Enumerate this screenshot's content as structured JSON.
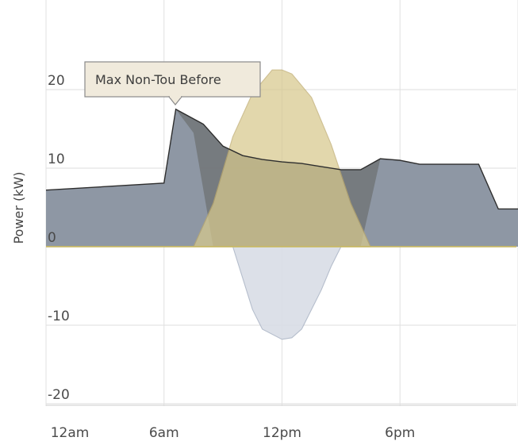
{
  "chart_data": {
    "type": "area",
    "title": "",
    "xlabel": "",
    "ylabel": "Power (kW)",
    "ylim": [
      -20,
      25
    ],
    "yticks": [
      20,
      10,
      0,
      -10,
      -20
    ],
    "xticks": [
      {
        "label": "12am",
        "hour": 0
      },
      {
        "label": "6am",
        "hour": 6
      },
      {
        "label": "12pm",
        "hour": 12
      },
      {
        "label": "6pm",
        "hour": 18
      }
    ],
    "xlim_hours": [
      0,
      24
    ],
    "grid": true,
    "tooltip": {
      "text": "Max Non-Tou Before",
      "hour": 6.6,
      "value": 17.5
    },
    "series": [
      {
        "key": "max_non_tou_before",
        "name": "Max Non-Tou Before",
        "color": "#6f7478",
        "x": [
          0,
          6,
          6.6,
          8,
          9,
          10,
          11,
          12,
          13,
          14,
          15,
          16,
          17,
          18,
          19,
          20,
          21,
          22,
          23,
          24
        ],
        "y": [
          7.2,
          8.1,
          17.5,
          15.6,
          12.8,
          11.6,
          11.1,
          10.8,
          10.6,
          10.2,
          9.8,
          9.8,
          11.2,
          11.0,
          10.5,
          10.5,
          10.5,
          10.5,
          4.8,
          4.8
        ]
      },
      {
        "key": "net_load",
        "color": "#8f99a6",
        "x": [
          0,
          6,
          6.6,
          7.5,
          8.5,
          9.5,
          10,
          11,
          12,
          13,
          14,
          15,
          16,
          17,
          18,
          19,
          20,
          21,
          22,
          23,
          24
        ],
        "y": [
          7.2,
          8.1,
          17.5,
          14.5,
          0,
          0,
          0,
          0,
          0,
          0,
          0,
          0,
          0,
          11.2,
          10.9,
          10.5,
          10.5,
          10.5,
          10.5,
          4.8,
          4.8
        ]
      },
      {
        "key": "solar",
        "color": "#d7c98d",
        "x": [
          7.5,
          8.5,
          9.5,
          10.5,
          11.5,
          12,
          12.5,
          13.5,
          14.5,
          15.5,
          16.5
        ],
        "y": [
          0,
          5.5,
          14,
          19.5,
          22.5,
          22.5,
          22,
          19,
          13,
          5.5,
          0
        ]
      },
      {
        "key": "export",
        "color": "#d9dde6",
        "x": [
          9.5,
          10,
          10.5,
          11,
          12,
          12.5,
          13,
          14,
          14.5,
          15
        ],
        "y": [
          0,
          -4,
          -8,
          -10.5,
          -11.8,
          -11.6,
          -10.5,
          -5.5,
          -2.5,
          0
        ]
      }
    ]
  }
}
